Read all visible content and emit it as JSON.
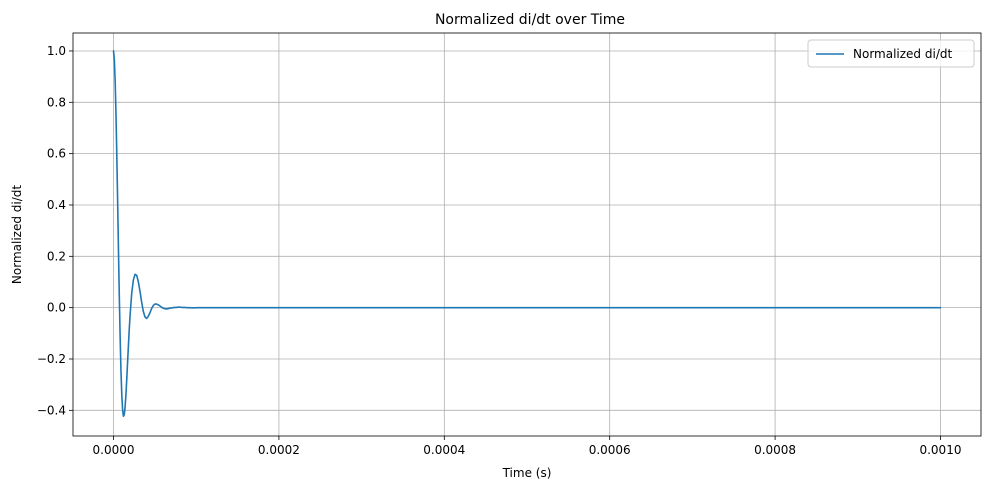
{
  "chart_data": {
    "type": "line",
    "title": "Normalized di/dt over Time",
    "xlabel": "Time (s)",
    "ylabel": "Normalized di/dt",
    "xlim": [
      -4.9e-05,
      0.001049
    ],
    "ylim": [
      -0.5,
      1.07
    ],
    "xticks": [
      0.0,
      0.0002,
      0.0004,
      0.0006,
      0.0008,
      0.001
    ],
    "xtick_labels": [
      "0.0000",
      "0.0002",
      "0.0004",
      "0.0006",
      "0.0008",
      "0.0010"
    ],
    "yticks": [
      -0.4,
      -0.2,
      0.0,
      0.2,
      0.4,
      0.6,
      0.8,
      1.0
    ],
    "ytick_labels": [
      "−0.4",
      "−0.2",
      "0.0",
      "0.2",
      "0.4",
      "0.6",
      "0.8",
      "1.0"
    ],
    "grid": true,
    "legend_position": "top-right",
    "series": [
      {
        "name": "Normalized di/dt",
        "color": "#1f77b4",
        "x": [
          0.0,
          1e-06,
          2e-06,
          3e-06,
          4e-06,
          5e-06,
          6e-06,
          7e-06,
          8e-06,
          9e-06,
          1e-05,
          1.1e-05,
          1.2e-05,
          1.3e-05,
          1.4e-05,
          1.5e-05,
          1.6e-05,
          1.7e-05,
          1.8e-05,
          1.9e-05,
          2e-05,
          2.2e-05,
          2.4e-05,
          2.6e-05,
          2.8e-05,
          3e-05,
          3.2e-05,
          3.4e-05,
          3.6e-05,
          3.8e-05,
          4e-05,
          4.2e-05,
          4.4e-05,
          4.6e-05,
          4.8e-05,
          5e-05,
          5.2e-05,
          5.4e-05,
          5.6e-05,
          5.8e-05,
          6e-05,
          6.2e-05,
          6.4e-05,
          6.6e-05,
          6.8e-05,
          7e-05,
          7.2e-05,
          7.4e-05,
          7.6e-05,
          7.8e-05,
          8e-05,
          8.3e-05,
          8.6e-05,
          8.9e-05,
          9.2e-05,
          9.5e-05,
          9.8e-05,
          0.000101,
          0.000104,
          0.000107,
          0.00011,
          0.000115,
          0.00012,
          0.00013,
          0.00015,
          0.0002,
          0.0003,
          0.0004,
          0.0005,
          0.0006,
          0.0007,
          0.0008,
          0.0009,
          0.001
        ],
        "y": [
          1.0,
          0.966,
          0.88,
          0.75,
          0.589,
          0.408,
          0.222,
          0.044,
          -0.115,
          -0.245,
          -0.339,
          -0.398,
          -0.423,
          -0.417,
          -0.387,
          -0.339,
          -0.279,
          -0.213,
          -0.148,
          -0.086,
          -0.031,
          0.056,
          0.108,
          0.13,
          0.126,
          0.101,
          0.064,
          0.022,
          -0.014,
          -0.036,
          -0.042,
          -0.034,
          -0.02,
          -0.004,
          0.008,
          0.014,
          0.014,
          0.011,
          0.007,
          0.002,
          -0.002,
          -0.004,
          -0.005,
          -0.004,
          -0.002,
          -0.001,
          0.0,
          0.001,
          0.001,
          0.002,
          0.002,
          0.001,
          0.001,
          0.0,
          0.0,
          -0.0005,
          -0.0005,
          0.0,
          0.0,
          0.0,
          0.0,
          0.0,
          0.0,
          0.0,
          0.0,
          0.0,
          0.0,
          0.0,
          0.0,
          0.0,
          0.0,
          0.0,
          0.0,
          0.0
        ]
      }
    ]
  }
}
